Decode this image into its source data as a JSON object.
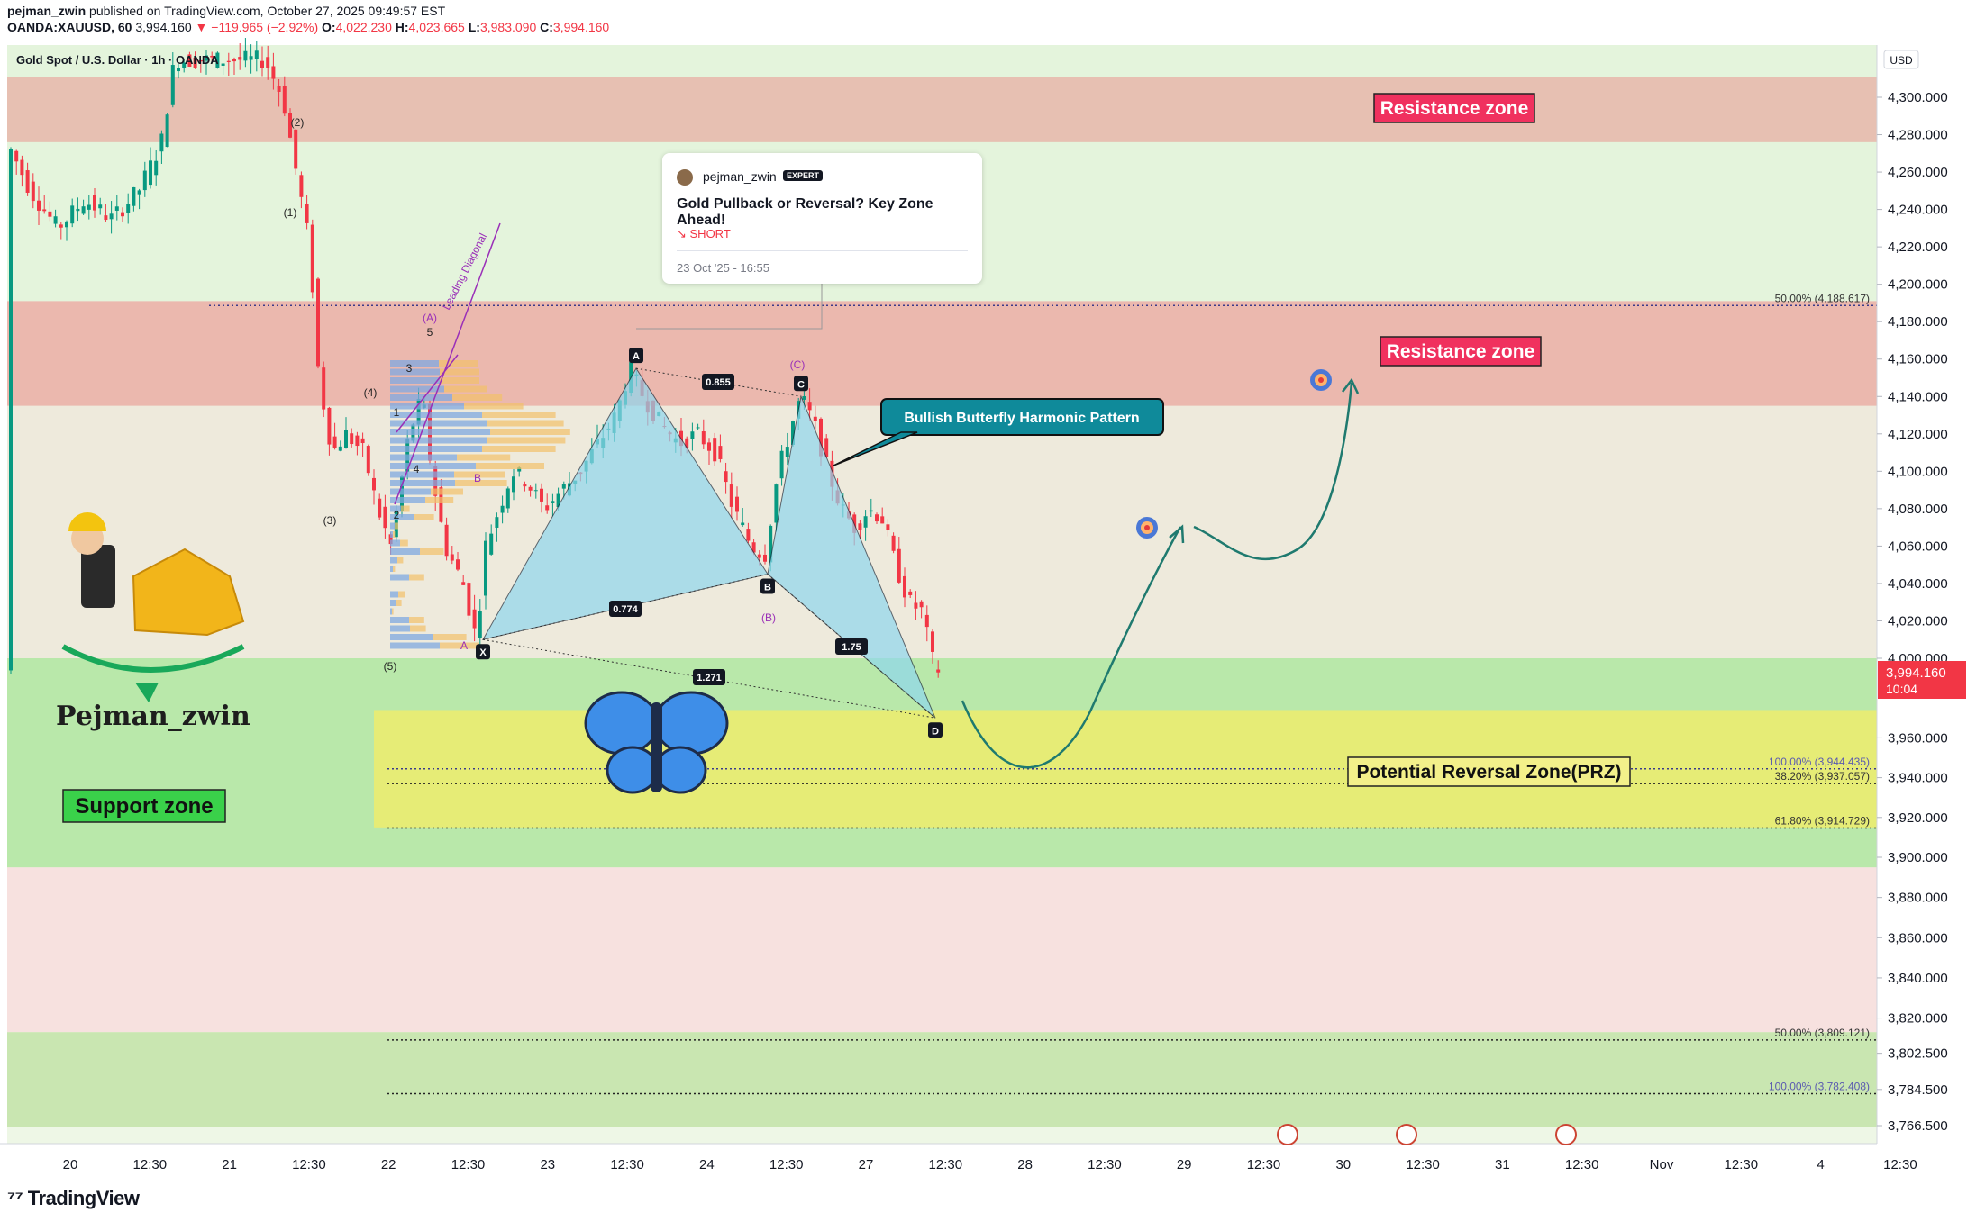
{
  "header": {
    "author": "pejman_zwin",
    "published": "published on TradingView.com, October 27, 2025 09:49:57 EST",
    "symbol": "OANDA:XAUUSD, 60",
    "last": "3,994.160",
    "change": "▼ −119.965 (−2.92%)",
    "o_label": "O:",
    "o": "4,022.230",
    "h_label": "H:",
    "h": "4,023.665",
    "l_label": "L:",
    "l": "3,983.090",
    "c_label": "C:",
    "c": "3,994.160",
    "legend": "Gold Spot / U.S. Dollar · 1h · OANDA"
  },
  "branding": {
    "footer": "TradingView",
    "logo_name": "Pejman_zwin"
  },
  "note": {
    "author": "pejman_zwin",
    "badge": "EXPERT",
    "title": "Gold Pullback or Reversal? Key Zone Ahead!",
    "side": "↘ SHORT",
    "date": "23 Oct '25 - 16:55"
  },
  "colors": {
    "up": "#089981",
    "down": "#f23645",
    "resistance": "#e8a9a4",
    "support": "#9fdc8f",
    "prz": "#e9ee73",
    "harmonic": "#8fd7ee",
    "curve": "#1f7a6f",
    "label_red": "#f0315e",
    "label_teal": "#0f8a9a"
  },
  "chart_data": {
    "type": "candlestick",
    "title": "Gold Spot / U.S. Dollar · 1h · OANDA",
    "currency": "USD",
    "ylim": [
      3756,
      4322
    ],
    "y_ticks": [
      3766.5,
      3784.5,
      3802.5,
      3820,
      3840,
      3860,
      3880,
      3900,
      3920,
      3940,
      3960,
      4000,
      4020,
      4040,
      4060,
      4080,
      4100,
      4120,
      4140,
      4160,
      4180,
      4200,
      4220,
      4240,
      4260,
      4280,
      4300
    ],
    "y_tick_labels": [
      "3,766.500",
      "3,784.500",
      "3,802.500",
      "3,820.000",
      "3,840.000",
      "3,860.000",
      "3,880.000",
      "3,900.000",
      "3,920.000",
      "3,940.000",
      "3,960.000",
      "4,000.000",
      "4,020.000",
      "4,040.000",
      "4,060.000",
      "4,080.000",
      "4,100.000",
      "4,120.000",
      "4,140.000",
      "4,160.000",
      "4,180.000",
      "4,200.000",
      "4,220.000",
      "4,240.000",
      "4,260.000",
      "4,280.000",
      "4,300.000"
    ],
    "x_ticks": [
      "20",
      "12:30",
      "21",
      "12:30",
      "22",
      "12:30",
      "23",
      "12:30",
      "24",
      "12:30",
      "27",
      "12:30",
      "28",
      "12:30",
      "29",
      "12:30",
      "30",
      "12:30",
      "31",
      "12:30",
      "Nov",
      "12:30",
      "4",
      "12:30"
    ],
    "last_price_label": "3,994.160",
    "countdown": "10:04",
    "zones": [
      {
        "name": "resistance-top",
        "from": 4276,
        "to": 4311
      },
      {
        "name": "resistance-mid",
        "from": 4135,
        "to": 4191,
        "label": "Resistance zone"
      },
      {
        "name": "support",
        "from": 3895,
        "to": 4000,
        "label": "Support zone"
      },
      {
        "name": "prz",
        "from": 3915,
        "to": 3974,
        "label": "Potential Reversal Zone(PRZ)"
      },
      {
        "name": "lower-support",
        "from": 3766,
        "to": 3813
      }
    ],
    "resistance_labels": [
      "Resistance zone",
      "Resistance zone"
    ],
    "fib_levels": [
      {
        "label": "50.00% (4,188.617)",
        "price": 4188.617
      },
      {
        "label": "100.00% (3,944.435)",
        "price": 3944.435
      },
      {
        "label": "38.20% (3,937.057)",
        "price": 3937.057
      },
      {
        "label": "61.80% (3,914.729)",
        "price": 3914.729
      },
      {
        "label": "50.00% (3,809.121)",
        "price": 3809.121
      },
      {
        "label": "100.00% (3,782.408)",
        "price": 3782.408
      }
    ],
    "harmonic": {
      "name": "Bullish Butterfly Harmonic Pattern",
      "points": [
        {
          "label": "X",
          "price": 4010
        },
        {
          "label": "A",
          "price": 4155
        },
        {
          "label": "B",
          "price": 4045
        },
        {
          "label": "C",
          "price": 4140
        },
        {
          "label": "D",
          "price": 3970
        }
      ],
      "ratios": [
        "0.855",
        "0.774",
        "1.75",
        "1.271"
      ]
    },
    "annotations": [
      "Leading Diagonal",
      "(A)",
      "(B)",
      "(C)",
      "(1)",
      "(2)",
      "(3)",
      "(4)",
      "(5)",
      "1",
      "2",
      "3",
      "4",
      "5",
      "A",
      "B"
    ]
  }
}
